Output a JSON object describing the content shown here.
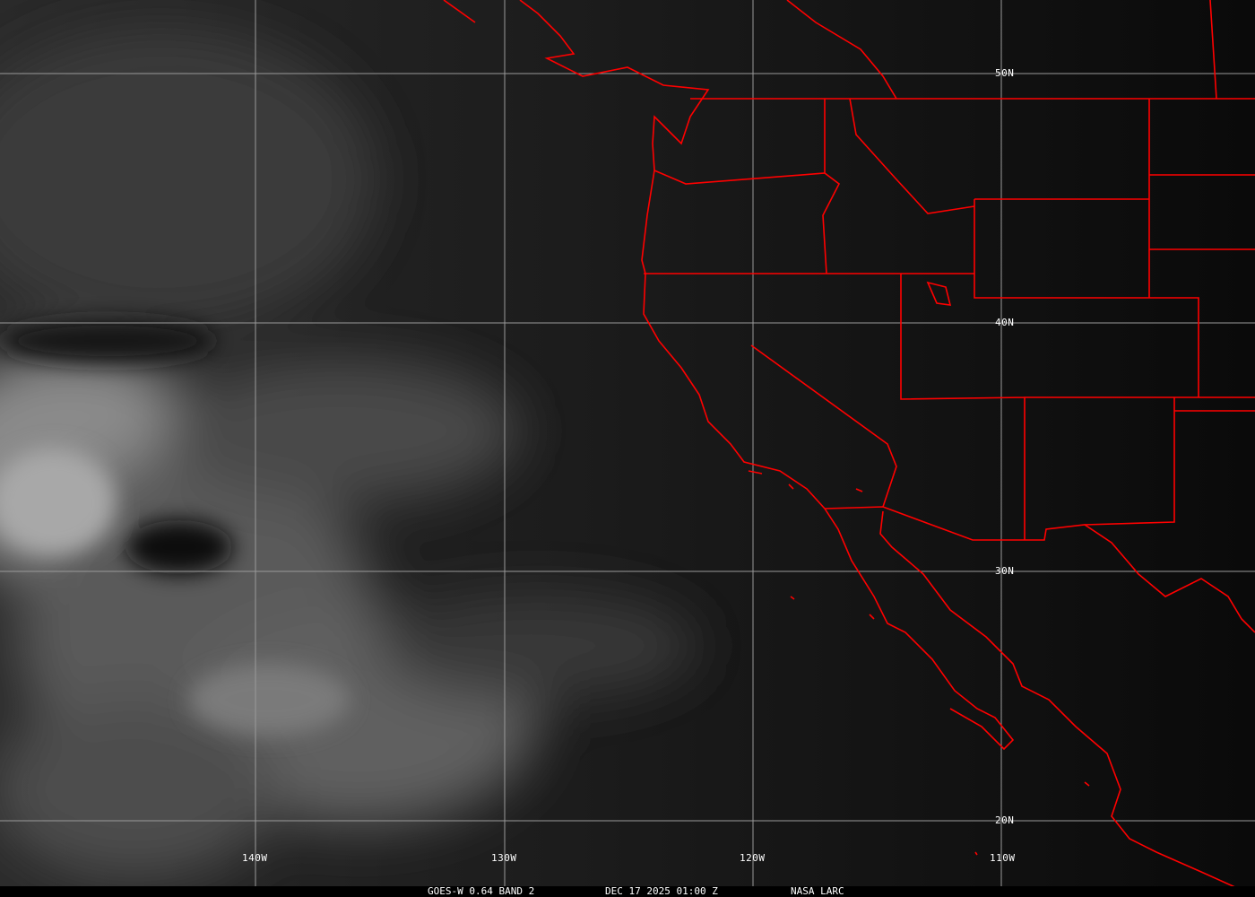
{
  "caption": {
    "satellite": "GOES-W 0.64 BAND 2",
    "datetime": "DEC 17 2025 01:00 Z",
    "source": "NASA LARC"
  },
  "grid": {
    "longitudes": [
      "140W",
      "130W",
      "120W",
      "110W"
    ],
    "latitudes": [
      "50N",
      "40N",
      "30N",
      "20N"
    ]
  },
  "colors": {
    "borders": "#ff0000",
    "grid": "#9a9a9a",
    "background": "#0b0b0b"
  }
}
